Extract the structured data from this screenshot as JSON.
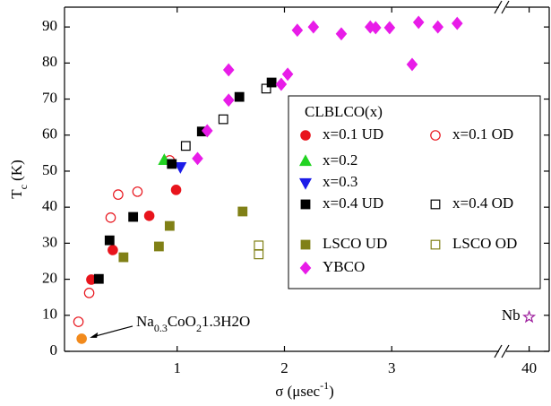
{
  "chart_data": {
    "type": "scatter",
    "xlabel_parts": [
      "σ (μsec",
      "-1",
      ")"
    ],
    "ylabel_parts": [
      "T",
      "c",
      " (K)"
    ],
    "xlim": [
      -0.05,
      4.0
    ],
    "xlim_break": [
      39.6,
      40.35
    ],
    "xticks": [
      1,
      2,
      3,
      40
    ],
    "ylim": [
      0,
      95.5
    ],
    "yticks": [
      0,
      10,
      20,
      30,
      40,
      50,
      60,
      70,
      80,
      90
    ],
    "axis_break": true,
    "grid": false,
    "legend_title": "CLBLCO(x)",
    "legend_loc": "center right",
    "series": [
      {
        "name": "x=0.1 UD",
        "color": "#e8141c",
        "marker": "circle",
        "filled": true,
        "x": [
          0.2,
          0.4,
          0.74,
          0.99
        ],
        "values": [
          19.9,
          28.1,
          37.6,
          44.8
        ]
      },
      {
        "name": "x=0.1 OD",
        "color": "#e8141c",
        "marker": "circle",
        "filled": false,
        "x": [
          0.08,
          0.18,
          0.38,
          0.45,
          0.63,
          0.93
        ],
        "values": [
          8.2,
          16.2,
          37.1,
          43.5,
          44.3,
          53
        ]
      },
      {
        "name": "x=0.2",
        "color": "#22d322",
        "marker": "triangle-up",
        "filled": true,
        "x": [
          0.88
        ],
        "values": [
          53
        ]
      },
      {
        "name": "x=0.3",
        "color": "#1c1ce8",
        "marker": "triangle-down",
        "filled": true,
        "x": [
          1.03
        ],
        "values": [
          51.2
        ]
      },
      {
        "name": "x=0.4 UD",
        "color": "#000000",
        "marker": "square",
        "filled": true,
        "x": [
          0.27,
          0.37,
          0.59,
          0.95,
          1.23,
          1.58,
          1.88
        ],
        "values": [
          20.1,
          30.8,
          37.3,
          52,
          61,
          70.6,
          74.6
        ]
      },
      {
        "name": "x=0.4 OD",
        "color": "#000000",
        "marker": "square",
        "filled": false,
        "x": [
          1.08,
          1.43,
          1.83
        ],
        "values": [
          57,
          64.4,
          72.9
        ]
      },
      {
        "name": "LSCO UD",
        "color": "#808016",
        "marker": "square",
        "filled": true,
        "x": [
          0.5,
          0.83,
          0.93,
          1.61
        ],
        "values": [
          26.1,
          29.1,
          34.8,
          38.8
        ]
      },
      {
        "name": "LSCO OD",
        "color": "#808016",
        "marker": "square",
        "filled": false,
        "x": [
          1.76,
          1.76
        ],
        "values": [
          29.4,
          26.9
        ]
      },
      {
        "name": "YBCO",
        "color": "#e81ce8",
        "marker": "diamond",
        "filled": true,
        "x": [
          1.19,
          1.28,
          1.48,
          1.48,
          1.97,
          2.03,
          2.12,
          2.27,
          2.53,
          2.8,
          2.85,
          2.98,
          3.19,
          3.25,
          3.43,
          3.61
        ],
        "values": [
          53.5,
          61.2,
          78.1,
          69.7,
          74.1,
          76.9,
          89.1,
          90,
          88.1,
          90,
          89.8,
          89.8,
          79.6,
          91.3,
          90,
          91
        ]
      }
    ],
    "extra_points": [
      {
        "label_parts": [
          "Nb"
        ],
        "x": 40,
        "y": 9.5,
        "color": "#9c1c9c",
        "marker": "star",
        "filled": false
      },
      {
        "label_parts": [
          "Na",
          "0.3",
          "CoO",
          "2",
          "1.3H2O"
        ],
        "x": 0.11,
        "y": 3.5,
        "color": "#f28a1c",
        "marker": "circle",
        "filled": true
      }
    ]
  }
}
